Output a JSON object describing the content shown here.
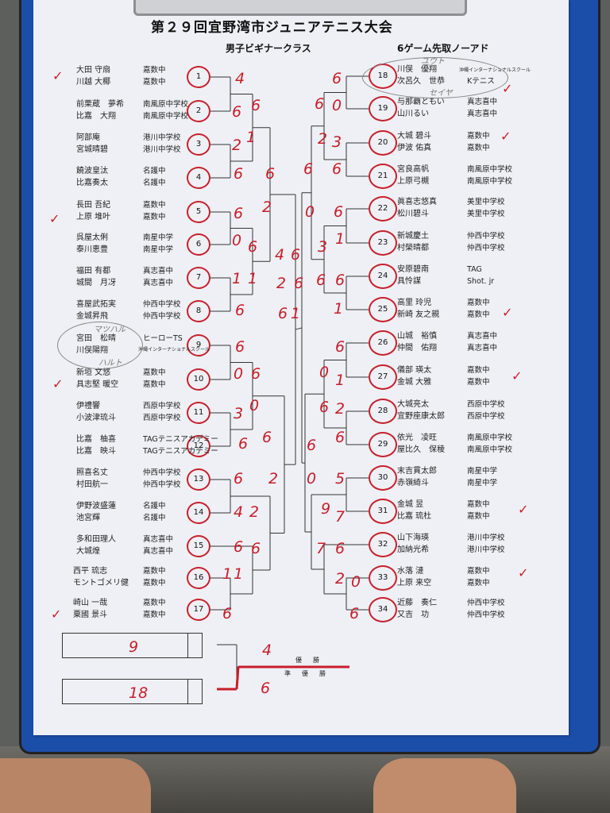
{
  "title": "第２９回宜野湾市ジュニアテニス大会",
  "subtitle": "男子ビギナークラス",
  "format": "6ゲーム先取ノーアド",
  "colors": {
    "clipboard": "#1b4ea8",
    "ink": "#c81e2a",
    "paper": "#eef0f5"
  },
  "left": [
    {
      "seed": "1",
      "players": [
        "大田 守扇",
        "川越 大椰"
      ],
      "schools": [
        "嘉数中",
        "嘉数中"
      ]
    },
    {
      "seed": "2",
      "players": [
        "前栗蔵　夢希",
        "比嘉　大翔"
      ],
      "schools": [
        "南風原中学校",
        "南風原中学校"
      ]
    },
    {
      "seed": "3",
      "players": [
        "阿部庵",
        "宮城晴碧"
      ],
      "schools": [
        "港川中学校",
        "港川中学校"
      ]
    },
    {
      "seed": "4",
      "players": [
        "饒波皇汰",
        "比嘉奏太"
      ],
      "schools": [
        "名護中",
        "名護中"
      ]
    },
    {
      "seed": "5",
      "players": [
        "長田 吾紀",
        "上原 堆叶"
      ],
      "schools": [
        "嘉数中",
        "嘉数中"
      ]
    },
    {
      "seed": "6",
      "players": [
        "呉屋太俐",
        "泰川恵豊"
      ],
      "schools": [
        "南星中学",
        "南星中学"
      ]
    },
    {
      "seed": "7",
      "players": [
        "福田 有都",
        "城間　月冴"
      ],
      "schools": [
        "真志喜中",
        "真志喜中"
      ]
    },
    {
      "seed": "8",
      "players": [
        "喜屋武拓実",
        "金城昇飛"
      ],
      "schools": [
        "仲西中学校",
        "仲西中学校"
      ]
    },
    {
      "seed": "9",
      "players": [
        "宮田　松晴",
        "川俣陽翔"
      ],
      "schools": [
        "ヒーローTS",
        "沖縄インターナショナルスクール"
      ]
    },
    {
      "seed": "10",
      "players": [
        "新垣 文悠",
        "具志堅 暖空"
      ],
      "schools": [
        "嘉数中",
        "嘉数中"
      ]
    },
    {
      "seed": "11",
      "players": [
        "伊禮響",
        "小波津琉斗"
      ],
      "schools": [
        "西原中学校",
        "西原中学校"
      ]
    },
    {
      "seed": "12",
      "players": [
        "比嘉　柚喜",
        "比嘉　映斗"
      ],
      "schools": [
        "TAGテニスアカデミー",
        "TAGテニスアカデミー"
      ]
    },
    {
      "seed": "13",
      "players": [
        "照喜名丈",
        "村田航一"
      ],
      "schools": [
        "仲西中学校",
        "仲西中学校"
      ]
    },
    {
      "seed": "14",
      "players": [
        "伊野波盛蓮",
        "池宮輝"
      ],
      "schools": [
        "名護中",
        "名護中"
      ]
    },
    {
      "seed": "15",
      "players": [
        "多和田理人",
        "大城煌"
      ],
      "schools": [
        "真志喜中",
        "真志喜中"
      ]
    },
    {
      "seed": "16",
      "players": [
        "西平 琉志",
        "モントゴメリ健"
      ],
      "schools": [
        "嘉数中",
        "嘉数中"
      ]
    },
    {
      "seed": "17",
      "players": [
        "崎山 一哉",
        "粟國 景斗"
      ],
      "schools": [
        "嘉数中",
        "嘉数中"
      ]
    }
  ],
  "right": [
    {
      "seed": "18",
      "players": [
        "川俣　優翔",
        "次呂久　世恭"
      ],
      "schools": [
        "沖縄インターナショナルスクール",
        "Kテニス"
      ]
    },
    {
      "seed": "19",
      "players": [
        "与那覇ともい",
        "山川るい"
      ],
      "schools": [
        "真志喜中",
        "真志喜中"
      ]
    },
    {
      "seed": "20",
      "players": [
        "大城 碧斗",
        "伊波 佑真"
      ],
      "schools": [
        "嘉数中",
        "嘉数中"
      ]
    },
    {
      "seed": "21",
      "players": [
        "宮良高帆",
        "上原弓槻"
      ],
      "schools": [
        "南風原中学校",
        "南風原中学校"
      ]
    },
    {
      "seed": "22",
      "players": [
        "眞喜志悠真",
        "松川碧斗"
      ],
      "schools": [
        "美里中学校",
        "美里中学校"
      ]
    },
    {
      "seed": "23",
      "players": [
        "新城慶土",
        "村榮晴都"
      ],
      "schools": [
        "仲西中学校",
        "仲西中学校"
      ]
    },
    {
      "seed": "24",
      "players": [
        "安原碧南",
        "具怜謀"
      ],
      "schools": [
        "TAG",
        "Shot. jr"
      ]
    },
    {
      "seed": "25",
      "players": [
        "高里 玲児",
        "新崎 友之親"
      ],
      "schools": [
        "嘉数中",
        "嘉数中"
      ]
    },
    {
      "seed": "26",
      "players": [
        "山城　裕慎",
        "仲間　佑翔"
      ],
      "schools": [
        "真志喜中",
        "真志喜中"
      ]
    },
    {
      "seed": "27",
      "players": [
        "儀部 瑛太",
        "金城 大雅"
      ],
      "schools": [
        "嘉数中",
        "嘉数中"
      ]
    },
    {
      "seed": "28",
      "players": [
        "大城亮太",
        "宜野座康太郎"
      ],
      "schools": [
        "西原中学校",
        "西原中学校"
      ]
    },
    {
      "seed": "29",
      "players": [
        "依光　凌旺",
        "屋比久　保稜"
      ],
      "schools": [
        "南風原中学校",
        "南風原中学校"
      ]
    },
    {
      "seed": "30",
      "players": [
        "末吉貫太郎",
        "赤嶺綺斗"
      ],
      "schools": [
        "南星中学",
        "南星中学"
      ]
    },
    {
      "seed": "31",
      "players": [
        "金城 昱",
        "比嘉 琉杜"
      ],
      "schools": [
        "嘉数中",
        "嘉数中"
      ]
    },
    {
      "seed": "32",
      "players": [
        "山下海瑛",
        "加納光希"
      ],
      "schools": [
        "港川中学校",
        "港川中学校"
      ]
    },
    {
      "seed": "33",
      "players": [
        "水落 漣",
        "上原 来空"
      ],
      "schools": [
        "嘉数中",
        "嘉数中"
      ]
    },
    {
      "seed": "34",
      "players": [
        "近藤　奏仁",
        "又吉　功"
      ],
      "schools": [
        "仲西中学校",
        "仲西中学校"
      ]
    }
  ],
  "final": {
    "champion_label": "優勝",
    "runner_up_label": "準優勝",
    "slot_top": "9",
    "slot_bottom": "18",
    "score_top": "4",
    "score_bottom": "6"
  },
  "pencil_notes": [
    "マツハル",
    "ハルト",
    "ユウト",
    "セイヤ"
  ],
  "scores": [
    "4",
    "6",
    "6",
    "2",
    "6",
    "1",
    "6",
    "2",
    "6",
    "0",
    "6",
    "1",
    "1",
    "6",
    "4",
    "2",
    "6",
    "6",
    "6",
    "1",
    "6",
    "0",
    "6",
    "0",
    "3",
    "6",
    "6",
    "6",
    "2",
    "4",
    "2",
    "6",
    "6",
    "1",
    "1",
    "6",
    "6",
    "0",
    "6",
    "2",
    "3",
    "6",
    "6",
    "0",
    "6",
    "1",
    "3",
    "6",
    "6",
    "1",
    "6",
    "0",
    "1",
    "6",
    "2",
    "6",
    "6",
    "0",
    "5",
    "9",
    "7",
    "7",
    "6",
    "2",
    "0",
    "6"
  ]
}
